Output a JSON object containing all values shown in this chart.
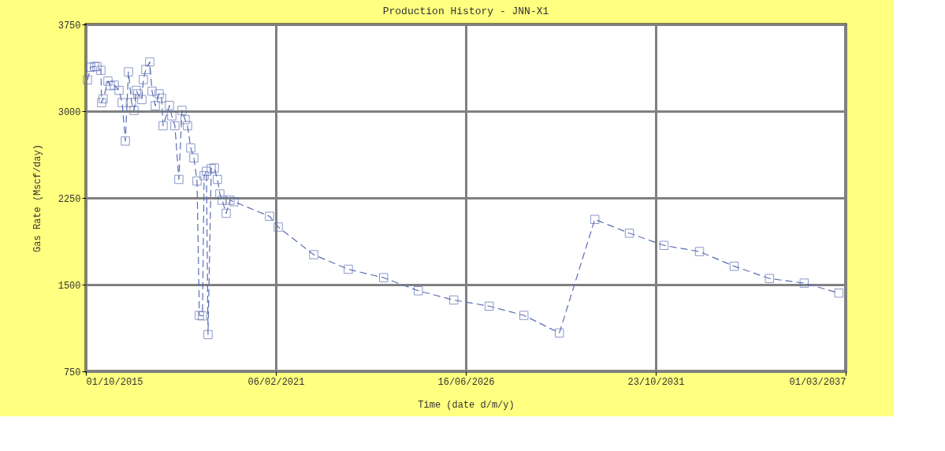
{
  "chart_data": {
    "type": "line",
    "title": "Production History - JNN-X1",
    "xlabel": "Time (date d/m/y)",
    "ylabel": "Gas Rate (Mscf/day)",
    "x": [
      "2015-10-17",
      "2015-11-19",
      "2015-12-29",
      "2016-01-23",
      "2016-03-03",
      "2016-03-11",
      "2016-03-27",
      "2016-05-15",
      "2016-06-08",
      "2016-07-19",
      "2016-09-06",
      "2016-10-08",
      "2016-11-10",
      "2016-12-12",
      "2017-01-13",
      "2017-02-07",
      "2017-03-03",
      "2017-03-19",
      "2017-04-29",
      "2017-05-15",
      "2017-06-08",
      "2017-07-19",
      "2017-08-12",
      "2017-09-14",
      "2017-10-24",
      "2017-11-18",
      "2017-12-04",
      "2018-02-07",
      "2018-03-03",
      "2018-04-04",
      "2018-05-15",
      "2018-06-16",
      "2018-07-19",
      "2018-08-12",
      "2018-09-14",
      "2018-10-16",
      "2018-11-18",
      "2018-12-12",
      "2019-01-13",
      "2019-01-30",
      "2019-02-23",
      "2019-03-11",
      "2019-04-13",
      "2019-05-15",
      "2019-06-16",
      "2019-07-11",
      "2019-08-04",
      "2019-09-14",
      "2019-10-24",
      "2019-12-04",
      "2020-12-04",
      "2021-03-03",
      "2022-03-03",
      "2023-02-22",
      "2024-02-21",
      "2025-02-12",
      "2026-02-12",
      "2027-02-12",
      "2028-02-04",
      "2029-02-03",
      "2030-02-03",
      "2031-01-25",
      "2032-01-17",
      "2033-01-16",
      "2034-01-08",
      "2035-01-07",
      "2035-12-30",
      "2036-12-21"
    ],
    "series": [
      {
        "color": "#5b6db3",
        "values": [
          3270,
          3380,
          3386,
          3386,
          3353,
          3074,
          3107,
          3260,
          3220,
          3225,
          3180,
          3074,
          2742,
          3340,
          3074,
          3007,
          3180,
          3150,
          3100,
          3273,
          3360,
          3426,
          3173,
          3047,
          3150,
          3113,
          2874,
          3050,
          2960,
          2874,
          2410,
          3007,
          2927,
          2874,
          2682,
          2596,
          2396,
          1234,
          1230,
          2443,
          2480,
          1068,
          2503,
          2509,
          2410,
          2284,
          2230,
          2117,
          2230,
          2217,
          2091,
          1998,
          1759,
          1633,
          1560,
          1447,
          1367,
          1314,
          1234,
          1082,
          2064,
          1945,
          1839,
          1786,
          1659,
          1553,
          1513,
          1427
        ]
      }
    ],
    "xlim": [
      "2015-10-01",
      "2037-03-01"
    ],
    "xticks": [
      {
        "value": "2015-10-01",
        "label": "01/10/2015"
      },
      {
        "value": "2021-02-06",
        "label": "06/02/2021"
      },
      {
        "value": "2026-06-16",
        "label": "16/06/2026"
      },
      {
        "value": "2031-10-23",
        "label": "23/10/2031"
      },
      {
        "value": "2037-03-01",
        "label": "01/03/2037"
      }
    ],
    "ylim": [
      750,
      3750
    ],
    "yticks": [
      750,
      1500,
      2250,
      3000,
      3750
    ],
    "grid": true,
    "marker": "square",
    "line_style": "dashed"
  }
}
